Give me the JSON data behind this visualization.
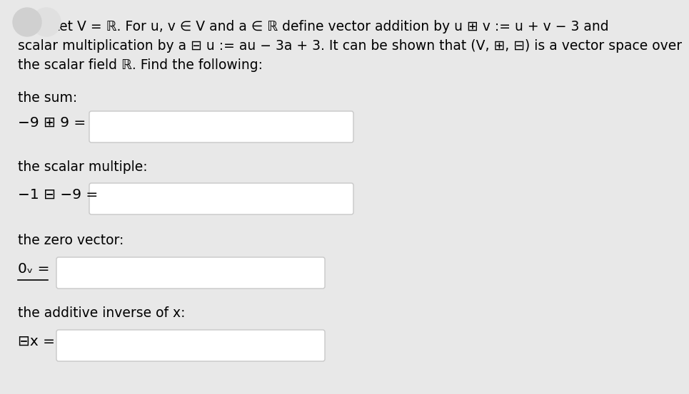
{
  "bg_color": "#e8e8e8",
  "text_color": "#000000",
  "box_color": "#ffffff",
  "box_border": "#c8c8c8",
  "font_size_body": 13.5,
  "title_text_line1": "        Let V = ℝ. For u, v ∈ V and a ∈ ℝ define vector addition by u ⊞ v := u + v − 3 and",
  "title_text_line2": "scalar multiplication by a ⊟ u := au − 3a + 3. It can be shown that (V, ⊞, ⊟) is a vector space over",
  "title_text_line3": "the scalar field ℝ. Find the following:",
  "label_sum": "the sum:",
  "expr_sum": "−9 ⊞ 9 =",
  "label_scalar": "the scalar multiple:",
  "expr_scalar": "−1 ⊟ −9 =",
  "label_zero": "the zero vector:",
  "expr_zero": "0ᵥ =",
  "label_inverse": "the additive inverse of x:",
  "expr_inverse": "⊟x =",
  "circle1_color": "#d0d0d0",
  "circle2_color": "#e0e0e0"
}
